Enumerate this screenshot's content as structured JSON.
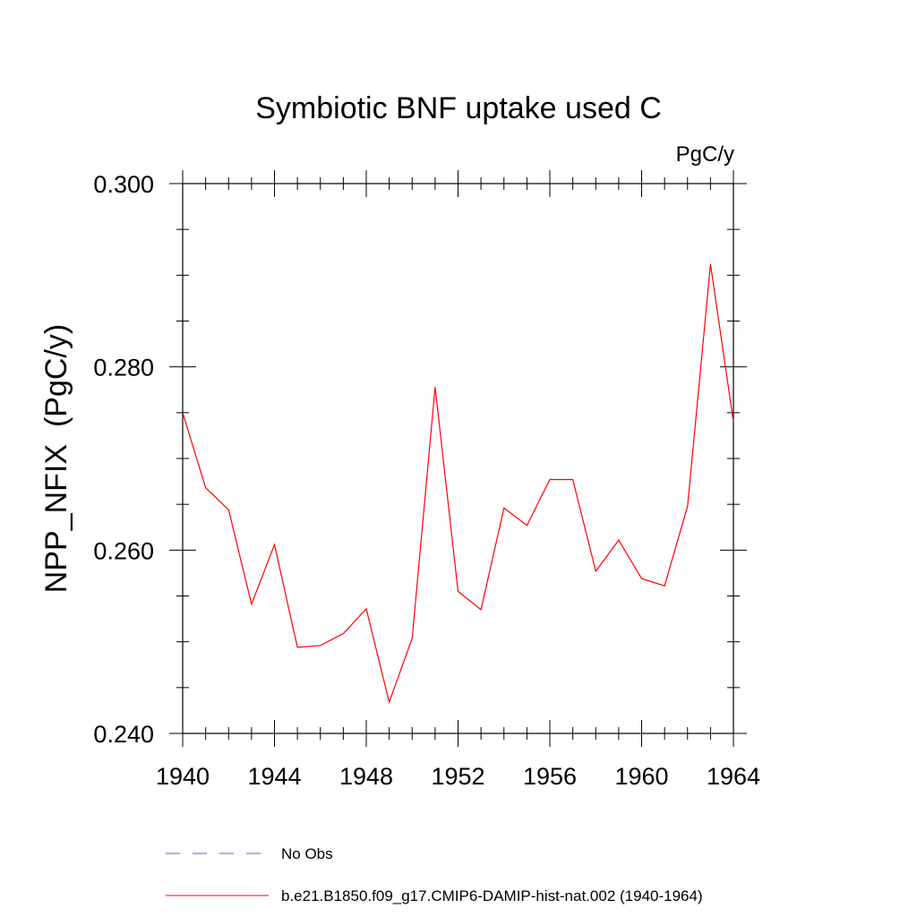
{
  "chart_data": {
    "type": "line",
    "title": "Symbiotic BNF uptake used C",
    "units_label": "PgC/y",
    "ylabel": "NPP_NFIX  (PgC/y)",
    "xlabel": "",
    "xlim": [
      1940,
      1964
    ],
    "ylim": [
      0.24,
      0.3
    ],
    "x_ticks": [
      "1940",
      "1944",
      "1948",
      "1952",
      "1956",
      "1960",
      "1964"
    ],
    "y_ticks": [
      "0.240",
      "0.260",
      "0.280",
      "0.300"
    ],
    "x": [
      1940,
      1941,
      1942,
      1943,
      1944,
      1945,
      1946,
      1947,
      1948,
      1949,
      1950,
      1951,
      1952,
      1953,
      1954,
      1955,
      1956,
      1957,
      1958,
      1959,
      1960,
      1961,
      1962,
      1963,
      1964
    ],
    "series": [
      {
        "name": "b.e21.B1850.f09_g17.CMIP6-DAMIP-hist-nat.002 (1940-1964)",
        "color": "#ff0000",
        "values": [
          0.275,
          0.2668,
          0.2644,
          0.2541,
          0.2606,
          0.2494,
          0.2496,
          0.2509,
          0.2536,
          0.2434,
          0.2504,
          0.2778,
          0.2555,
          0.2535,
          0.2646,
          0.2627,
          0.2677,
          0.2677,
          0.2577,
          0.2611,
          0.2569,
          0.2561,
          0.2648,
          0.2912,
          0.274
        ]
      }
    ],
    "legend": [
      {
        "label": "No Obs",
        "color": "#6a5acd",
        "style": "dashed"
      },
      {
        "label": "b.e21.B1850.f09_g17.CMIP6-DAMIP-hist-nat.002 (1940-1964)",
        "color": "#ff0000",
        "style": "solid"
      }
    ],
    "legend_placement": "bottom",
    "grid": false
  }
}
